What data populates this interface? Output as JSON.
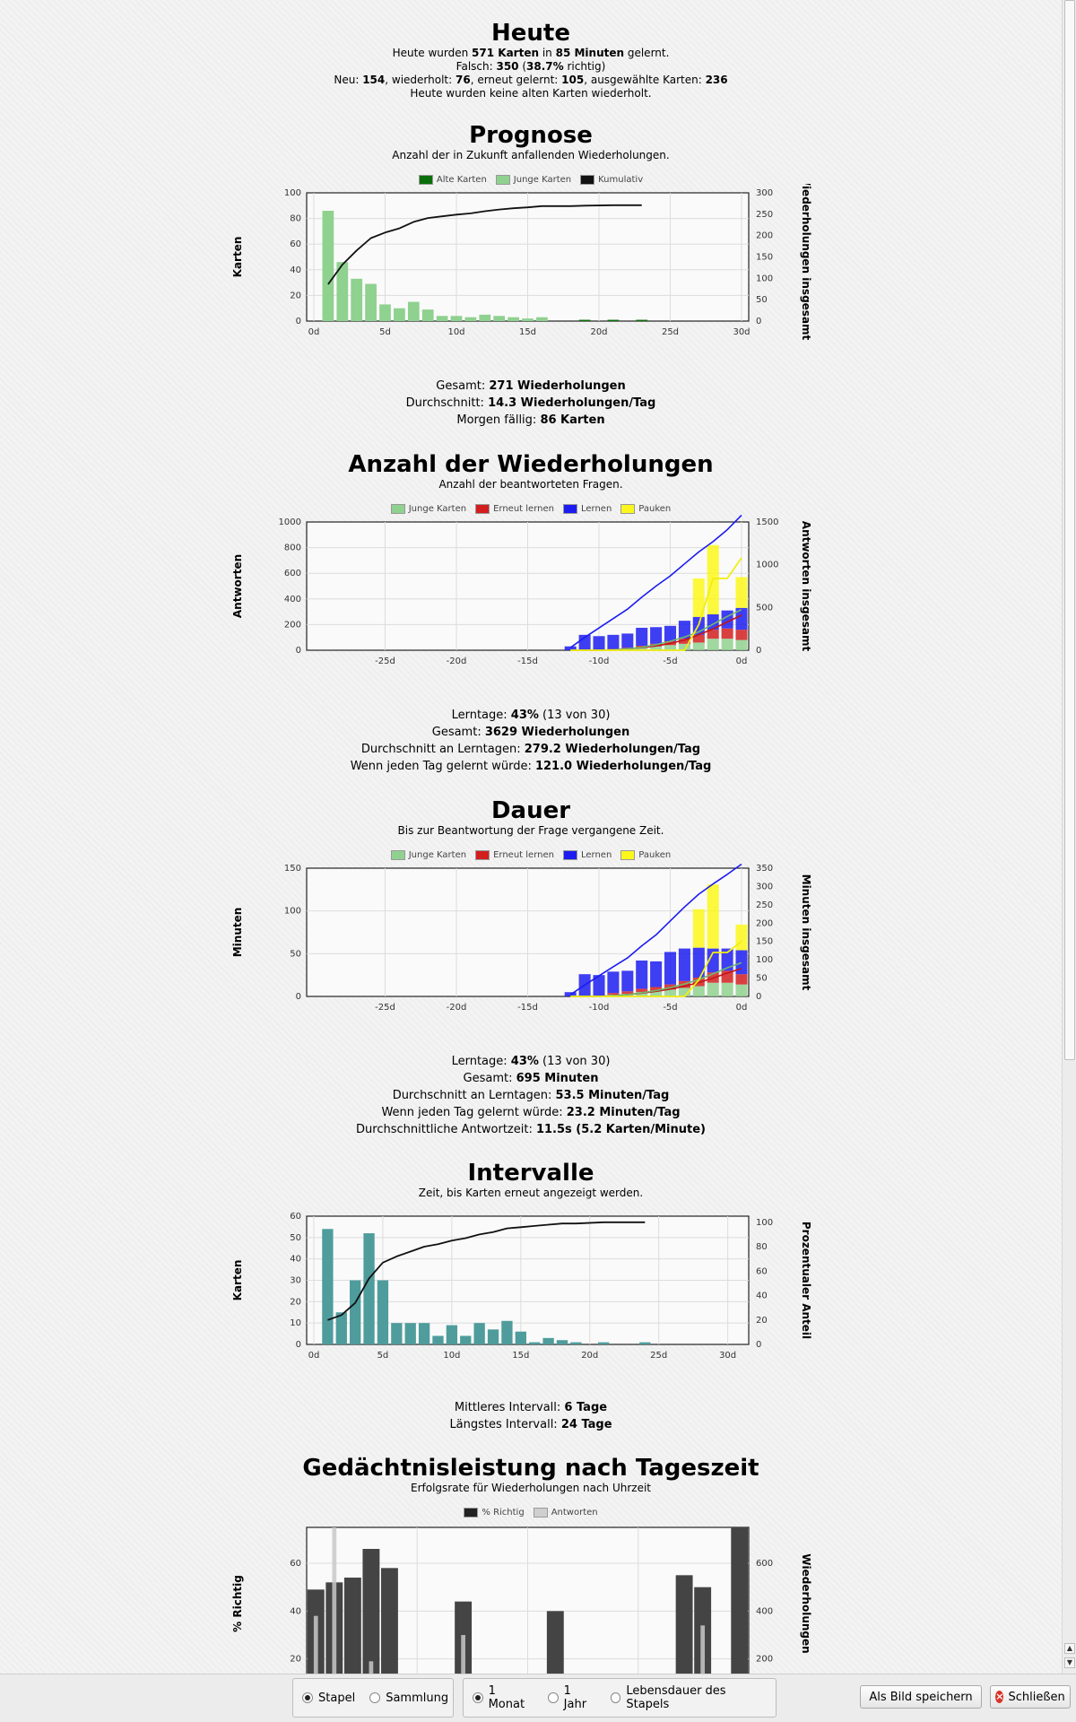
{
  "heute": {
    "title": "Heute",
    "l1": [
      "Heute wurden ",
      "571 Karten",
      " in ",
      "85 Minuten",
      " gelernt."
    ],
    "l2": [
      "Falsch: ",
      "350",
      " (",
      "38.7%",
      " richtig)"
    ],
    "l3": [
      "Neu: ",
      "154",
      ", wiederholt: ",
      "76",
      ", erneut gelernt: ",
      "105",
      ", ausgewählte Karten: ",
      "236"
    ],
    "l4": "Heute wurden keine alten Karten wiederholt."
  },
  "prognose": {
    "title": "Prognose",
    "subtitle": "Anzahl der in Zukunft anfallenden Wiederholungen.",
    "legend": [
      "Alte Karten",
      "Junge Karten",
      "Kumulativ"
    ],
    "stats": [
      {
        "label": "Gesamt: ",
        "value": "271 Wiederholungen"
      },
      {
        "label": "Durchschnitt: ",
        "value": "14.3 Wiederholungen/Tag"
      },
      {
        "label": "Morgen fällig: ",
        "value": "86 Karten"
      }
    ]
  },
  "anzahl": {
    "title": "Anzahl der Wiederholungen",
    "subtitle": "Anzahl der beantworteten Fragen.",
    "legend": [
      "Junge Karten",
      "Erneut lernen",
      "Lernen",
      "Pauken"
    ],
    "stats": [
      {
        "label": "Lerntage: ",
        "value": "43%",
        "extra": " (13 von 30)"
      },
      {
        "label": "Gesamt: ",
        "value": "3629 Wiederholungen"
      },
      {
        "label": "Durchschnitt an Lerntagen: ",
        "value": "279.2 Wiederholungen/Tag"
      },
      {
        "label": "Wenn jeden Tag gelernt würde: ",
        "value": "121.0 Wiederholungen/Tag"
      }
    ]
  },
  "dauer": {
    "title": "Dauer",
    "subtitle": "Bis zur Beantwortung der Frage vergangene Zeit.",
    "legend": [
      "Junge Karten",
      "Erneut lernen",
      "Lernen",
      "Pauken"
    ],
    "stats": [
      {
        "label": "Lerntage: ",
        "value": "43%",
        "extra": " (13 von 30)"
      },
      {
        "label": "Gesamt: ",
        "value": "695 Minuten"
      },
      {
        "label": "Durchschnitt an Lerntagen: ",
        "value": "53.5 Minuten/Tag"
      },
      {
        "label": "Wenn jeden Tag gelernt würde: ",
        "value": "23.2 Minuten/Tag"
      },
      {
        "label": "Durchschnittliche Antwortzeit: ",
        "value": "11.5s (5.2 Karten/Minute)"
      }
    ]
  },
  "intervalle": {
    "title": "Intervalle",
    "subtitle": "Zeit, bis Karten erneut angezeigt werden.",
    "stats": [
      {
        "label": "Mittleres Intervall: ",
        "value": "6 Tage"
      },
      {
        "label": "Längstes Intervall: ",
        "value": "24 Tage"
      }
    ]
  },
  "tageszeit": {
    "title": "Gedächtnisleistung nach Tageszeit",
    "subtitle": "Erfolgsrate für Wiederholungen nach Uhrzeit",
    "legend": [
      "% Richtig",
      "Antworten"
    ]
  },
  "colors": {
    "alte": "#0a6e0a",
    "junge": "#8fd18f",
    "erneut": "#d21e1e",
    "lernen": "#1c1cf0",
    "pauken": "#fbf71c",
    "teal": "#4f9c9c",
    "dark": "#444444",
    "light": "#c8c8c8"
  },
  "chart_data": [
    {
      "type": "bar",
      "name": "prognose",
      "xlim": [
        0,
        30
      ],
      "ylim": [
        0,
        100
      ],
      "y2lim": [
        0,
        300
      ],
      "xticks": [
        "0d",
        "5d",
        "10d",
        "15d",
        "20d",
        "25d",
        "30d"
      ],
      "yticks": [
        0,
        20,
        40,
        60,
        80,
        100
      ],
      "y2ticks": [
        0,
        50,
        100,
        150,
        200,
        250,
        300
      ],
      "ylabel": "Karten",
      "y2label": "Wiederholungen insgesamt",
      "junge": [
        [
          1,
          86
        ],
        [
          2,
          46
        ],
        [
          3,
          33
        ],
        [
          4,
          29
        ],
        [
          5,
          13
        ],
        [
          6,
          10
        ],
        [
          7,
          15
        ],
        [
          8,
          9
        ],
        [
          9,
          4
        ],
        [
          10,
          4
        ],
        [
          11,
          3
        ],
        [
          12,
          5
        ],
        [
          13,
          4
        ],
        [
          14,
          3
        ],
        [
          15,
          2
        ],
        [
          16,
          3
        ]
      ],
      "alte": [
        [
          19,
          1
        ],
        [
          21,
          1
        ],
        [
          23,
          1
        ]
      ],
      "kumulativ": [
        [
          1,
          86
        ],
        [
          2,
          132
        ],
        [
          3,
          165
        ],
        [
          4,
          194
        ],
        [
          5,
          207
        ],
        [
          6,
          217
        ],
        [
          7,
          232
        ],
        [
          8,
          241
        ],
        [
          9,
          245
        ],
        [
          10,
          249
        ],
        [
          11,
          252
        ],
        [
          12,
          257
        ],
        [
          13,
          261
        ],
        [
          14,
          264
        ],
        [
          15,
          266
        ],
        [
          16,
          269
        ],
        [
          18,
          269
        ],
        [
          19,
          270
        ],
        [
          21,
          271
        ],
        [
          23,
          271
        ]
      ]
    },
    {
      "type": "bar",
      "name": "anzahl",
      "xlim": [
        -30,
        0
      ],
      "ylim": [
        0,
        1000
      ],
      "y2lim": [
        0,
        1500
      ],
      "xticks": [
        "-25d",
        "-20d",
        "-15d",
        "-10d",
        "-5d",
        "0d"
      ],
      "yticks": [
        0,
        200,
        400,
        600,
        800,
        1000
      ],
      "y2ticks": [
        0,
        500,
        1000,
        1500
      ],
      "ylabel": "Antworten",
      "y2label": "Antworten insgesamt",
      "days": [
        -12,
        -11,
        -10,
        -9,
        -8,
        -7,
        -6,
        -5,
        -4,
        -3,
        -2,
        -1,
        0
      ],
      "junge": [
        0,
        0,
        0,
        5,
        10,
        20,
        30,
        40,
        50,
        60,
        90,
        90,
        80
      ],
      "erneut": [
        0,
        0,
        0,
        5,
        10,
        15,
        20,
        30,
        40,
        60,
        70,
        80,
        80
      ],
      "lernen": [
        30,
        120,
        110,
        110,
        110,
        140,
        130,
        120,
        140,
        140,
        120,
        140,
        170
      ],
      "pauken": [
        0,
        0,
        0,
        0,
        0,
        0,
        0,
        0,
        0,
        300,
        540,
        0,
        240
      ],
      "cum_lernen": [
        30,
        150,
        260,
        370,
        480,
        620,
        750,
        870,
        1010,
        1150,
        1270,
        1410,
        1580
      ],
      "cum_erneut": [
        0,
        0,
        0,
        5,
        15,
        30,
        50,
        80,
        120,
        180,
        250,
        330,
        410
      ],
      "cum_junge": [
        0,
        0,
        0,
        5,
        15,
        35,
        65,
        105,
        155,
        215,
        305,
        395,
        475
      ],
      "cum_pauken": [
        0,
        0,
        0,
        0,
        0,
        0,
        0,
        0,
        0,
        300,
        840,
        840,
        1080
      ]
    },
    {
      "type": "bar",
      "name": "dauer",
      "xlim": [
        -30,
        0
      ],
      "ylim": [
        0,
        150
      ],
      "y2lim": [
        0,
        350
      ],
      "xticks": [
        "-25d",
        "-20d",
        "-15d",
        "-10d",
        "-5d",
        "0d"
      ],
      "yticks": [
        0,
        50,
        100,
        150
      ],
      "y2ticks": [
        0,
        50,
        100,
        150,
        200,
        250,
        300,
        350
      ],
      "ylabel": "Minuten",
      "y2label": "Minuten insgesamt",
      "days": [
        -12,
        -11,
        -10,
        -9,
        -8,
        -7,
        -6,
        -5,
        -4,
        -3,
        -2,
        -1,
        0
      ],
      "junge": [
        0,
        0,
        0,
        2,
        3,
        5,
        6,
        8,
        10,
        12,
        16,
        16,
        14
      ],
      "erneut": [
        0,
        0,
        0,
        2,
        3,
        4,
        5,
        6,
        8,
        10,
        12,
        14,
        12
      ],
      "lernen": [
        5,
        26,
        25,
        25,
        24,
        33,
        30,
        38,
        38,
        35,
        28,
        26,
        28
      ],
      "pauken": [
        0,
        0,
        0,
        0,
        0,
        0,
        0,
        0,
        0,
        45,
        75,
        0,
        30
      ],
      "cum_lernen": [
        5,
        31,
        56,
        81,
        105,
        138,
        168,
        206,
        244,
        279,
        307,
        333,
        361
      ],
      "cum_erneut": [
        0,
        0,
        0,
        2,
        5,
        9,
        14,
        20,
        28,
        38,
        50,
        64,
        76
      ],
      "cum_junge": [
        0,
        0,
        0,
        2,
        5,
        10,
        16,
        24,
        34,
        46,
        62,
        78,
        92
      ],
      "cum_pauken": [
        0,
        0,
        0,
        0,
        0,
        0,
        0,
        0,
        0,
        45,
        120,
        120,
        150
      ]
    },
    {
      "type": "bar",
      "name": "intervalle",
      "xlim": [
        0,
        31
      ],
      "ylim": [
        0,
        60
      ],
      "y2lim": [
        0,
        105
      ],
      "xticks": [
        "0d",
        "5d",
        "10d",
        "15d",
        "20d",
        "25d",
        "30d"
      ],
      "yticks": [
        0,
        10,
        20,
        30,
        40,
        50,
        60
      ],
      "y2ticks": [
        0,
        20,
        40,
        60,
        80,
        100
      ],
      "ylabel": "Karten",
      "y2label": "Prozentualer Anteil",
      "bars": [
        [
          1,
          54
        ],
        [
          2,
          15
        ],
        [
          3,
          30
        ],
        [
          4,
          52
        ],
        [
          5,
          30
        ],
        [
          6,
          10
        ],
        [
          7,
          10
        ],
        [
          8,
          10
        ],
        [
          9,
          4
        ],
        [
          10,
          9
        ],
        [
          11,
          4
        ],
        [
          12,
          10
        ],
        [
          13,
          7
        ],
        [
          14,
          11
        ],
        [
          15,
          6
        ],
        [
          16,
          1
        ],
        [
          17,
          3
        ],
        [
          18,
          2
        ],
        [
          19,
          1
        ],
        [
          21,
          1
        ],
        [
          24,
          1
        ]
      ],
      "percent": [
        [
          1,
          20
        ],
        [
          2,
          24
        ],
        [
          3,
          34
        ],
        [
          4,
          54
        ],
        [
          5,
          67
        ],
        [
          6,
          72
        ],
        [
          7,
          76
        ],
        [
          8,
          80
        ],
        [
          9,
          82
        ],
        [
          10,
          85
        ],
        [
          11,
          87
        ],
        [
          12,
          90
        ],
        [
          13,
          92
        ],
        [
          14,
          95
        ],
        [
          15,
          96
        ],
        [
          16,
          97
        ],
        [
          17,
          98
        ],
        [
          18,
          99
        ],
        [
          19,
          99
        ],
        [
          21,
          100
        ],
        [
          24,
          100
        ]
      ]
    },
    {
      "type": "bar",
      "name": "tageszeit",
      "ylim": [
        0,
        75
      ],
      "y2lim": [
        0,
        750
      ],
      "yticks": [
        20,
        40,
        60
      ],
      "y2ticks": [
        200,
        400,
        600
      ],
      "ylabel": "% Richtig",
      "y2label": "Wiederholungen",
      "hours": [
        0,
        1,
        2,
        3,
        4,
        5,
        6,
        7,
        8,
        9,
        10,
        11,
        12,
        13,
        14,
        15,
        16,
        17,
        18,
        19,
        20,
        21,
        22,
        23
      ],
      "richtig": [
        49,
        52,
        54,
        66,
        58,
        0,
        0,
        0,
        44,
        0,
        0,
        0,
        0,
        40,
        0,
        0,
        0,
        0,
        0,
        0,
        55,
        50,
        0,
        75
      ],
      "antworten": [
        380,
        750,
        120,
        190,
        0,
        0,
        0,
        0,
        300,
        0,
        0,
        0,
        0,
        60,
        0,
        0,
        0,
        0,
        0,
        0,
        40,
        340,
        0,
        40
      ]
    }
  ],
  "bottombar": {
    "group1": [
      "Stapel",
      "Sammlung"
    ],
    "group2": [
      "1 Monat",
      "1 Jahr",
      "Lebensdauer des Stapels"
    ],
    "save_label": "Als Bild speichern",
    "close_label": "Schließen"
  }
}
